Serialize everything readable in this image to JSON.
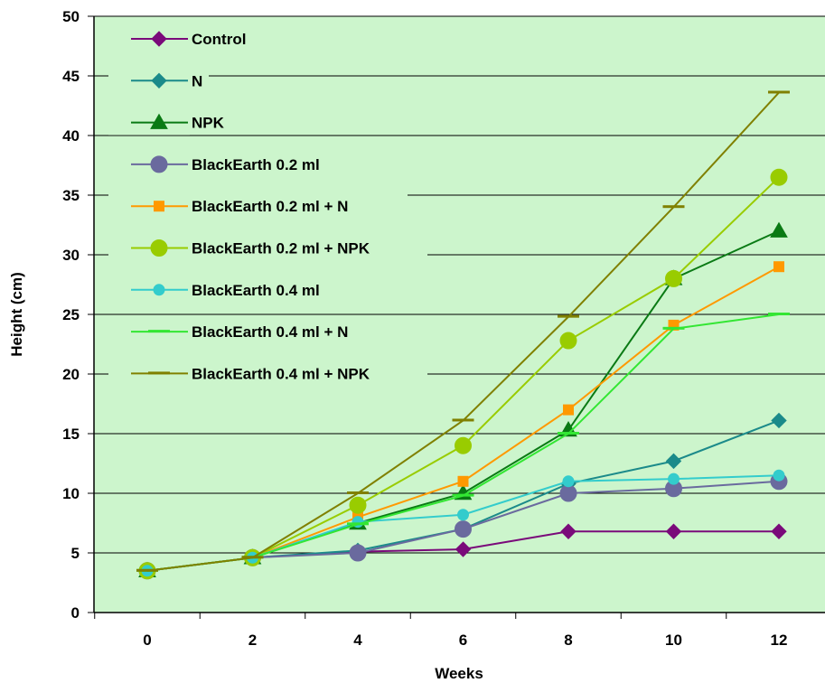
{
  "chart_data": {
    "type": "line",
    "title": "",
    "xlabel": "Weeks",
    "ylabel": "Height (cm)",
    "x": [
      0,
      2,
      4,
      6,
      8,
      10,
      12
    ],
    "x_tick_labels": [
      "0",
      "2",
      "4",
      "6",
      "8",
      "10",
      "12"
    ],
    "ylim": [
      0,
      50
    ],
    "y_ticks": [
      0,
      5,
      10,
      15,
      20,
      25,
      30,
      35,
      40,
      45,
      50
    ],
    "y_tick_labels": [
      "0",
      "5",
      "10",
      "15",
      "20",
      "25",
      "30",
      "35",
      "40",
      "45",
      "50"
    ],
    "grid": "horizontal",
    "legend_position": "top-left",
    "plot_background": "#ccf5cc",
    "series": [
      {
        "name": "Control",
        "color": "#7a0a7a",
        "marker": "diamond",
        "values": [
          3.5,
          4.6,
          5.1,
          5.3,
          6.8,
          6.8,
          6.8
        ]
      },
      {
        "name": "N",
        "color": "#1b8a8a",
        "marker": "diamond",
        "values": [
          3.5,
          4.6,
          5.2,
          7.0,
          10.8,
          12.7,
          16.1
        ]
      },
      {
        "name": "NPK",
        "color": "#0a7a14",
        "marker": "triangle",
        "values": [
          3.5,
          4.6,
          7.5,
          10.0,
          15.3,
          28.0,
          32.0
        ]
      },
      {
        "name": "BlackEarth 0.2 ml",
        "color": "#6a6a9e",
        "marker": "circle",
        "values": [
          3.5,
          4.6,
          5.0,
          7.0,
          10.0,
          10.4,
          11.0
        ]
      },
      {
        "name": "BlackEarth 0.2 ml + N",
        "color": "#ff9900",
        "marker": "square",
        "values": [
          3.5,
          4.6,
          8.0,
          11.0,
          17.0,
          24.1,
          29.0
        ]
      },
      {
        "name": "BlackEarth 0.2 ml + NPK",
        "color": "#99cc00",
        "marker": "circle",
        "values": [
          3.5,
          4.6,
          9.0,
          14.0,
          22.8,
          28.0,
          36.5
        ]
      },
      {
        "name": "BlackEarth 0.4 ml",
        "color": "#33cccc",
        "marker": "small-circle",
        "values": [
          3.5,
          4.6,
          7.6,
          8.2,
          11.0,
          11.2,
          11.5
        ]
      },
      {
        "name": "BlackEarth 0.4 ml + N",
        "color": "#33e633",
        "marker": "dash",
        "values": [
          3.5,
          4.6,
          7.4,
          9.8,
          15.0,
          23.8,
          25.0
        ]
      },
      {
        "name": "BlackEarth 0.4 ml + NPK",
        "color": "#808000",
        "marker": "dash",
        "values": [
          3.5,
          4.6,
          10.0,
          16.1,
          24.8,
          34.0,
          43.6
        ]
      }
    ]
  }
}
